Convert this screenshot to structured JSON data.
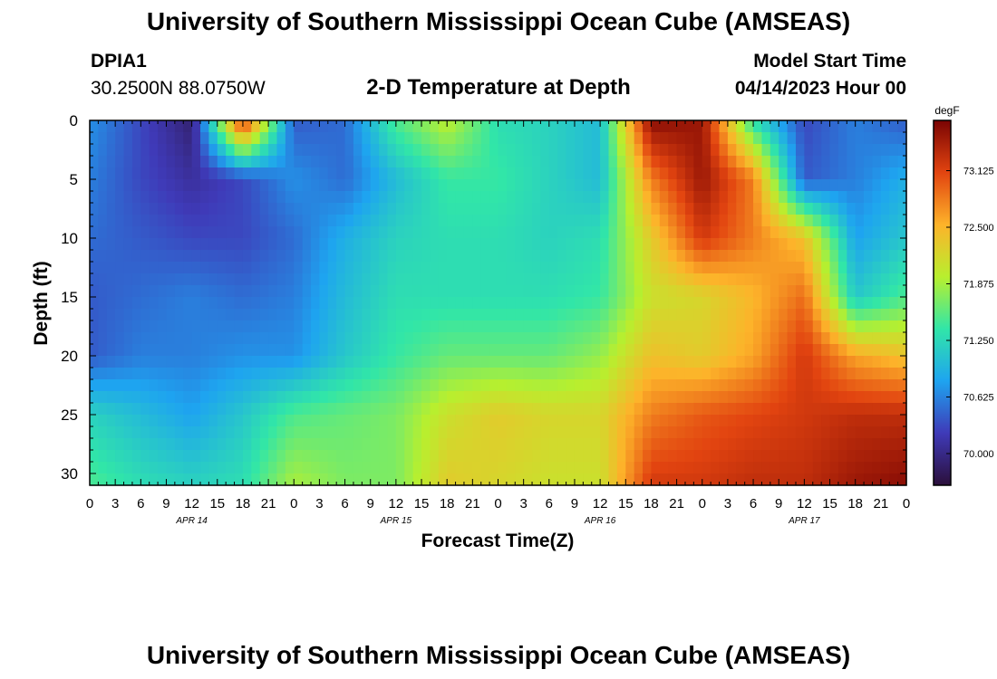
{
  "header": {
    "main_title": "University of Southern Mississippi Ocean Cube (AMSEAS)",
    "station_id": "DPIA1",
    "coordinates": "30.2500N  88.0750W",
    "chart_title": "2-D Temperature at Depth",
    "model_start_label": "Model Start Time",
    "model_start_value": "04/14/2023 Hour 00"
  },
  "footer": {
    "title": "University of Southern Mississippi Ocean Cube (AMSEAS)"
  },
  "chart_data": {
    "type": "heatmap",
    "title": "2-D Temperature at Depth",
    "xlabel": "Forecast Time(Z)",
    "ylabel": "Depth (ft)",
    "x_tick_labels": [
      "0",
      "3",
      "6",
      "9",
      "12",
      "15",
      "18",
      "21",
      "0",
      "3",
      "6",
      "9",
      "12",
      "15",
      "18",
      "21",
      "0",
      "3",
      "6",
      "9",
      "12",
      "15",
      "18",
      "21",
      "0",
      "3",
      "6",
      "9",
      "12",
      "15",
      "18",
      "21",
      "0"
    ],
    "x_hours": [
      0,
      3,
      6,
      9,
      12,
      15,
      18,
      21,
      24,
      27,
      30,
      33,
      36,
      39,
      42,
      45,
      48,
      51,
      54,
      57,
      60,
      63,
      66,
      69,
      72,
      75,
      78,
      81,
      84,
      87,
      90,
      93,
      96
    ],
    "date_labels": [
      {
        "label": "APR 14",
        "hour": 12
      },
      {
        "label": "APR 15",
        "hour": 36
      },
      {
        "label": "APR 16",
        "hour": 60
      },
      {
        "label": "APR 17",
        "hour": 84
      }
    ],
    "xlim": [
      0,
      96
    ],
    "y_ticks": [
      0,
      5,
      10,
      15,
      20,
      25,
      30
    ],
    "ylim": [
      0,
      31
    ],
    "y_inverted": true,
    "colorbar": {
      "unit": "degF",
      "ticks": [
        "70.000",
        "70.625",
        "71.250",
        "71.875",
        "72.500",
        "73.125"
      ],
      "tick_values": [
        70.0,
        70.625,
        71.25,
        71.875,
        72.5,
        73.125
      ],
      "range": [
        69.65,
        73.68
      ],
      "colors": [
        "#2b0f3a",
        "#3f3ab8",
        "#1ea4f0",
        "#31e6a8",
        "#b8ef2e",
        "#fdb32a",
        "#e24410",
        "#7a0403"
      ]
    },
    "depths": [
      0,
      5,
      10,
      15,
      20,
      25,
      31
    ],
    "hours": [
      0,
      6,
      12,
      18,
      24,
      30,
      36,
      42,
      48,
      54,
      60,
      66,
      72,
      78,
      84,
      90,
      96
    ],
    "temperature": [
      [
        70.7,
        70.3,
        69.9,
        73.3,
        70.4,
        70.5,
        71.5,
        72.0,
        71.3,
        71.2,
        71.0,
        73.6,
        73.5,
        71.3,
        70.3,
        70.6,
        70.4
      ],
      [
        70.6,
        70.3,
        70.1,
        70.3,
        70.7,
        70.5,
        71.0,
        71.4,
        71.4,
        71.2,
        71.0,
        72.8,
        73.5,
        72.8,
        70.4,
        70.6,
        70.9
      ],
      [
        70.5,
        70.4,
        70.3,
        70.3,
        70.5,
        70.9,
        71.2,
        71.3,
        71.3,
        71.2,
        71.3,
        72.3,
        73.2,
        72.8,
        72.4,
        70.8,
        71.1
      ],
      [
        70.4,
        70.5,
        70.6,
        70.5,
        70.6,
        71.0,
        71.3,
        71.3,
        71.3,
        71.3,
        71.4,
        72.1,
        72.2,
        72.5,
        72.9,
        71.1,
        71.5
      ],
      [
        70.4,
        70.6,
        70.6,
        70.7,
        70.7,
        71.1,
        71.4,
        71.6,
        71.6,
        71.6,
        71.8,
        72.4,
        72.3,
        72.6,
        73.2,
        72.6,
        72.4
      ],
      [
        71.2,
        71.0,
        70.8,
        71.1,
        71.5,
        71.6,
        71.7,
        72.1,
        72.3,
        72.2,
        72.2,
        72.8,
        73.0,
        73.1,
        73.2,
        73.3,
        73.3
      ],
      [
        71.5,
        71.3,
        71.2,
        71.3,
        71.9,
        71.7,
        71.7,
        72.3,
        72.2,
        72.1,
        72.1,
        73.2,
        73.2,
        73.3,
        73.3,
        73.5,
        73.6
      ]
    ]
  }
}
